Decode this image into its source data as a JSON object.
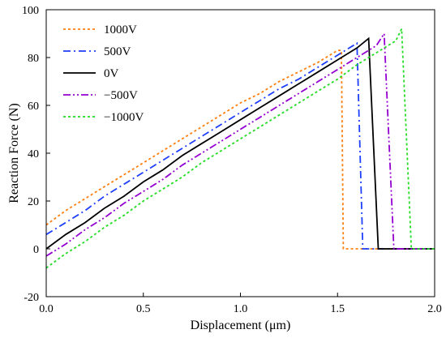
{
  "chart_data": {
    "type": "line",
    "title": "",
    "xlabel": "Displacement (μm)",
    "ylabel": "Reaction Force (N)",
    "xlim": [
      0.0,
      2.0
    ],
    "ylim": [
      -20,
      100
    ],
    "xticks": [
      "0.0",
      "0.5",
      "1.0",
      "1.5",
      "2.0"
    ],
    "yticks": [
      "-20",
      "0",
      "20",
      "40",
      "60",
      "80",
      "100"
    ],
    "grid": false,
    "legend_position": "top-left",
    "series": [
      {
        "name": "1000V",
        "color": "#ff7f0e",
        "dash": "dotted",
        "x": [
          0.0,
          0.1,
          0.2,
          0.3,
          0.4,
          0.5,
          0.6,
          0.7,
          0.8,
          0.9,
          1.0,
          1.1,
          1.2,
          1.3,
          1.4,
          1.5,
          1.52,
          1.53,
          2.0
        ],
        "y": [
          10,
          16,
          21,
          26,
          31,
          36,
          41,
          46,
          51,
          56,
          61,
          65,
          70,
          74,
          78,
          83,
          83,
          0,
          0
        ]
      },
      {
        "name": "500V",
        "color": "#1f3fff",
        "dash": "dashdot",
        "x": [
          0.0,
          0.1,
          0.2,
          0.3,
          0.4,
          0.5,
          0.6,
          0.7,
          0.8,
          0.9,
          1.0,
          1.1,
          1.2,
          1.3,
          1.4,
          1.5,
          1.6,
          1.63,
          2.0
        ],
        "y": [
          6,
          11,
          16,
          22,
          27,
          32,
          37,
          42,
          47,
          52,
          57,
          62,
          67,
          71,
          76,
          81,
          86,
          0,
          0
        ]
      },
      {
        "name": "0V",
        "color": "#000000",
        "dash": "solid",
        "x": [
          0.0,
          0.1,
          0.2,
          0.3,
          0.4,
          0.5,
          0.6,
          0.7,
          0.8,
          0.9,
          1.0,
          1.1,
          1.2,
          1.3,
          1.4,
          1.5,
          1.6,
          1.66,
          1.71,
          2.0
        ],
        "y": [
          0,
          6,
          11,
          17,
          22,
          28,
          33,
          39,
          44,
          49,
          54,
          59,
          64,
          69,
          74,
          79,
          84,
          88,
          0,
          0
        ]
      },
      {
        "name": "−500V",
        "color": "#9400d3",
        "dash": "dashdotdot",
        "x": [
          0.0,
          0.1,
          0.2,
          0.3,
          0.4,
          0.5,
          0.6,
          0.7,
          0.8,
          0.9,
          1.0,
          1.1,
          1.2,
          1.3,
          1.4,
          1.5,
          1.6,
          1.7,
          1.74,
          1.79,
          2.0
        ],
        "y": [
          -3,
          2,
          8,
          13,
          19,
          24,
          29,
          35,
          40,
          45,
          50,
          55,
          60,
          65,
          70,
          75,
          80,
          85,
          90,
          0,
          0
        ]
      },
      {
        "name": "−1000V",
        "color": "#22dd22",
        "dash": "dotted",
        "x": [
          0.0,
          0.1,
          0.2,
          0.3,
          0.4,
          0.5,
          0.6,
          0.7,
          0.8,
          0.9,
          1.0,
          1.1,
          1.2,
          1.3,
          1.4,
          1.5,
          1.6,
          1.7,
          1.8,
          1.83,
          1.88,
          2.0
        ],
        "y": [
          -8,
          -2,
          3,
          9,
          14,
          20,
          25,
          30,
          36,
          41,
          46,
          51,
          56,
          61,
          66,
          71,
          77,
          82,
          87,
          92,
          0,
          0
        ]
      }
    ]
  }
}
